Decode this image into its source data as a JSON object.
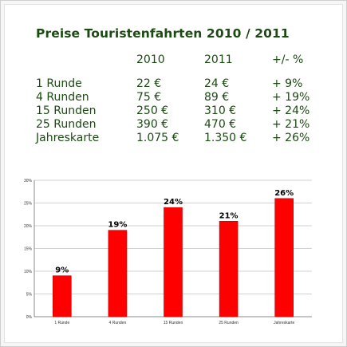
{
  "title": "Preise Touristenfahrten 2010 / 2011",
  "table": {
    "headers": [
      "",
      "2010",
      "2011",
      "+/- %"
    ],
    "rows": [
      [
        "1 Runde",
        "22 €",
        "24 €",
        "+ 9%"
      ],
      [
        "4 Runden",
        "75 €",
        "89 €",
        "+ 19%"
      ],
      [
        "15 Runden",
        "250 €",
        "310 €",
        "+ 24%"
      ],
      [
        "25 Runden",
        "390 €",
        "470 €",
        "+ 21%"
      ],
      [
        "Jahreskarte",
        "1.075 €",
        "1.350 €",
        "+ 26%"
      ]
    ]
  },
  "colors": {
    "text": "#1b4a12",
    "bar": "#ff0000",
    "bar_edge": "#c00000"
  },
  "chart_data": {
    "type": "bar",
    "categories": [
      "1 Runde",
      "4 Runden",
      "15 Runden",
      "25 Runden",
      "Jahreskarte"
    ],
    "values": [
      9,
      19,
      24,
      21,
      26
    ],
    "data_labels": [
      "9%",
      "19%",
      "24%",
      "21%",
      "26%"
    ],
    "ylim": [
      0,
      30
    ],
    "yticks": [
      0,
      5,
      10,
      15,
      20,
      25,
      30
    ],
    "ytick_labels": [
      "0%",
      "5%",
      "10%",
      "15%",
      "20%",
      "25%",
      "30%"
    ],
    "grid": "horizontal",
    "legend": "none"
  }
}
